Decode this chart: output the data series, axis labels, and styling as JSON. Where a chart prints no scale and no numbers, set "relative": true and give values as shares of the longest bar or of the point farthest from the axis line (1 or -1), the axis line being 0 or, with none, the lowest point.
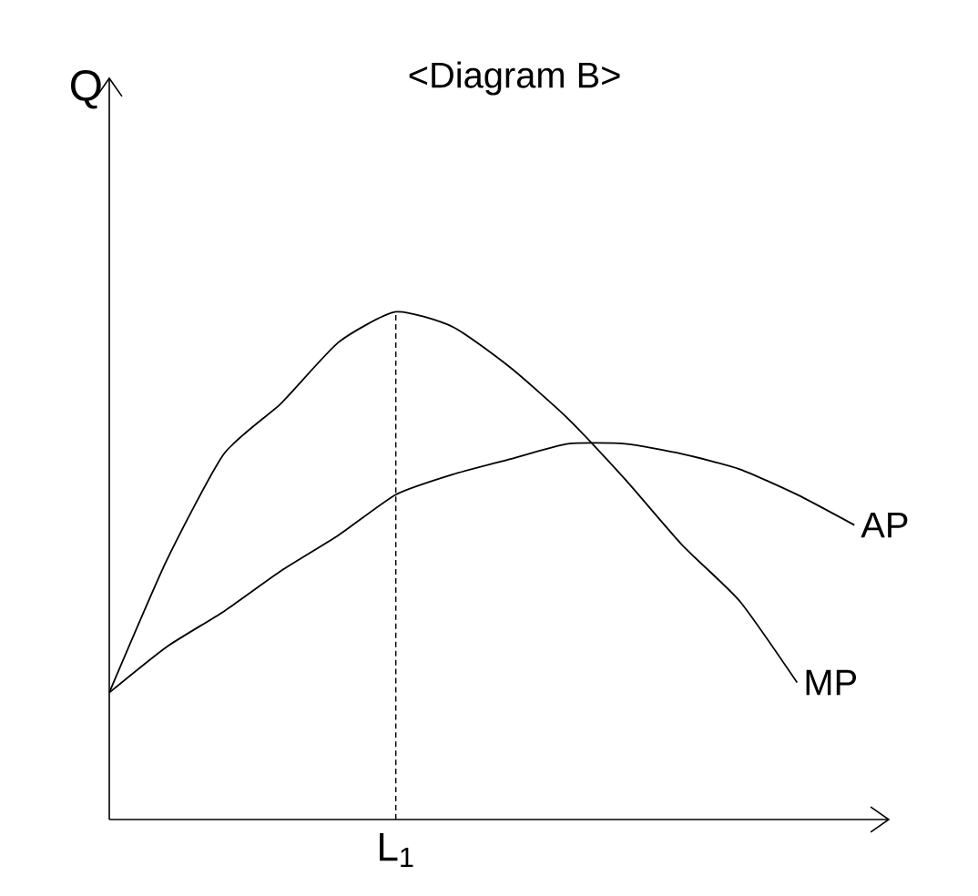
{
  "chart_data": {
    "type": "line",
    "title": "<Diagram B>",
    "ylabel": "Q",
    "relative": true,
    "categories": [
      null,
      null,
      null,
      null,
      null,
      null,
      null,
      null,
      null,
      null,
      null,
      null,
      null,
      null
    ],
    "series": [
      {
        "name": "MP",
        "color": "#000000",
        "values": [
          0.25,
          0.51,
          0.72,
          0.82,
          0.94,
          1.0,
          0.97,
          0.89,
          0.79,
          0.67,
          0.54,
          0.43,
          0.27,
          null
        ]
      },
      {
        "name": "AP",
        "color": "#000000",
        "values": [
          0.25,
          0.34,
          0.41,
          0.49,
          0.56,
          0.64,
          0.68,
          0.71,
          0.74,
          0.74,
          0.72,
          0.69,
          0.64,
          0.58
        ]
      }
    ],
    "ref_lines": [
      {
        "axis": "x",
        "value": "L$_{1}$",
        "line_style": "dashed"
      }
    ],
    "legend": false
  }
}
